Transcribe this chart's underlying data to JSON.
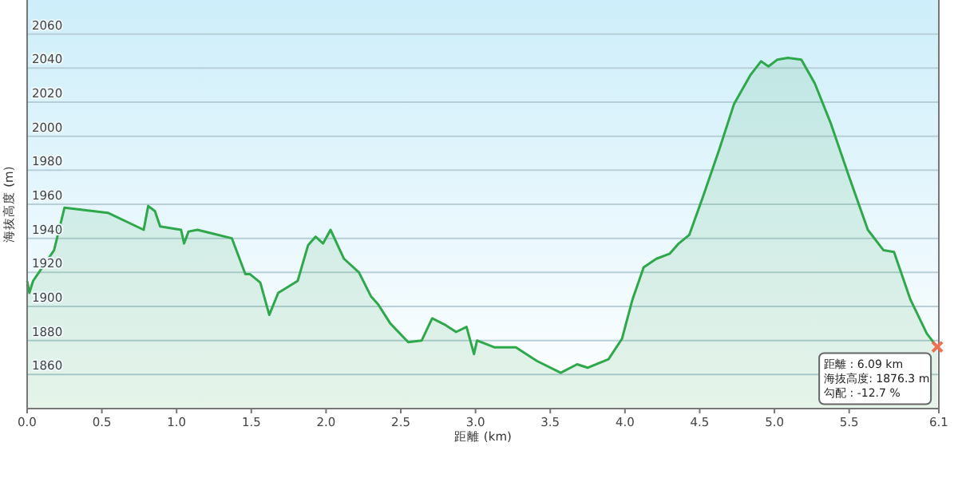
{
  "chart_data": {
    "type": "area",
    "xlabel": "距離 (km)",
    "ylabel": "海抜高度 (m)",
    "xlim": [
      0,
      6.1
    ],
    "ylim": [
      1840,
      2080
    ],
    "xticks": [
      {
        "value": 0,
        "label": "0.0"
      },
      0.5,
      {
        "value": 1,
        "label": "1.0"
      },
      1.5,
      {
        "value": 2,
        "label": "2.0"
      },
      2.5,
      {
        "value": 3,
        "label": "3.0"
      },
      3.5,
      {
        "value": 4,
        "label": "4.0"
      },
      4.5,
      {
        "value": 5,
        "label": "5.0"
      },
      5.5,
      6.1
    ],
    "yticks": [
      1860,
      1880,
      1900,
      1920,
      1940,
      1960,
      1980,
      2000,
      2020,
      2040,
      2060
    ],
    "grid": "y",
    "series": [
      {
        "color": "#2ea84a",
        "x": [
          0,
          0.015,
          0.04,
          0.18,
          0.25,
          0.54,
          0.78,
          0.81,
          0.855,
          0.89,
          1.03,
          1.05,
          1.08,
          1.14,
          1.37,
          1.46,
          1.49,
          1.56,
          1.62,
          1.68,
          1.81,
          1.88,
          1.93,
          1.98,
          2.03,
          2.12,
          2.22,
          2.3,
          2.35,
          2.43,
          2.55,
          2.64,
          2.71,
          2.8,
          2.87,
          2.94,
          2.99,
          3.01,
          3.125,
          3.27,
          3.41,
          3.57,
          3.68,
          3.75,
          3.89,
          3.98,
          4.05,
          4.125,
          4.21,
          4.3,
          4.36,
          4.43,
          4.52,
          4.63,
          4.73,
          4.84,
          4.91,
          4.96,
          5.02,
          5.09,
          5.18,
          5.27,
          5.375,
          5.5,
          5.625,
          5.73,
          5.8,
          5.91,
          6.02,
          6.09
        ],
        "values": [
          1915,
          1908,
          1915,
          1933,
          1958,
          1955,
          1945,
          1959,
          1956,
          1947,
          1945,
          1937,
          1944,
          1945,
          1940,
          1919,
          1919,
          1914,
          1895,
          1908,
          1915,
          1936,
          1941,
          1937,
          1945,
          1928,
          1920,
          1906,
          1901,
          1890,
          1879,
          1880,
          1893,
          1889,
          1885,
          1888,
          1872,
          1880,
          1876,
          1876,
          1868,
          1861,
          1866,
          1864,
          1869,
          1881,
          1904,
          1923,
          1928,
          1931,
          1937,
          1942,
          1964,
          1992,
          2019,
          2036,
          2044,
          2041,
          2045,
          2046,
          2045,
          2031,
          2008,
          1976,
          1945,
          1933,
          1932,
          1904,
          1884,
          1876
        ]
      }
    ],
    "annotations": [
      {
        "text": "距離 : 6.09 km\n海抜高度: 1876.3 m\n勾配 : -12.7 %",
        "x": 6.09,
        "y": 1876.3
      }
    ]
  }
}
